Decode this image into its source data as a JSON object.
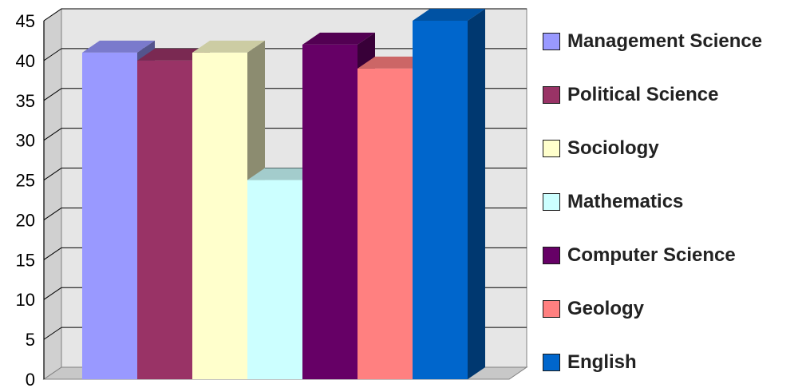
{
  "chart_data": {
    "type": "bar",
    "style": "3d-clustered",
    "series": [
      {
        "name": "Management Science",
        "color": "#9999ff",
        "values": [
          41
        ]
      },
      {
        "name": "Political Science",
        "color": "#993366",
        "values": [
          40
        ]
      },
      {
        "name": "Sociology",
        "color": "#ffffcc",
        "values": [
          41
        ]
      },
      {
        "name": "Mathematics",
        "color": "#ccffff",
        "values": [
          25
        ]
      },
      {
        "name": "Computer Science",
        "color": "#660066",
        "values": [
          42
        ]
      },
      {
        "name": "Geology",
        "color": "#ff8080",
        "values": [
          39
        ]
      },
      {
        "name": "English",
        "color": "#0066cc",
        "values": [
          45
        ]
      }
    ],
    "yticks": [
      "0",
      "5",
      "10",
      "15",
      "20",
      "25",
      "30",
      "35",
      "40",
      "45"
    ],
    "ylim": [
      0,
      45
    ],
    "grid": true,
    "legend": "right"
  }
}
